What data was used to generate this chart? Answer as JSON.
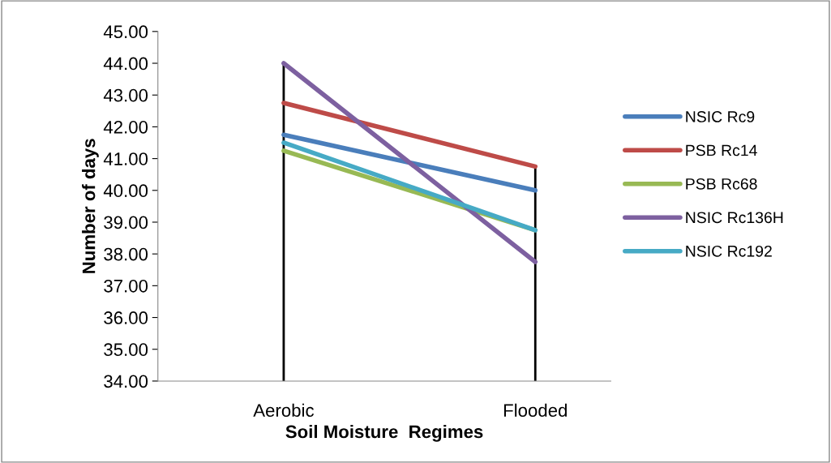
{
  "chart_data": {
    "type": "line",
    "xlabel": "Soil Moisture  Regimes",
    "ylabel": "Number of days",
    "categories": [
      "Aerobic",
      "Flooded"
    ],
    "series": [
      {
        "name": "NSIC Rc9",
        "color": "#4a7ebb",
        "values": [
          41.75,
          40.0
        ]
      },
      {
        "name": "PSB Rc14",
        "color": "#be4b48",
        "values": [
          42.75,
          40.75
        ]
      },
      {
        "name": "PSB Rc68",
        "color": "#98b954",
        "values": [
          41.25,
          38.75
        ]
      },
      {
        "name": "NSIC Rc136H",
        "color": "#7d60a0",
        "values": [
          44.0,
          37.75
        ]
      },
      {
        "name": "NSIC Rc192",
        "color": "#46aac5",
        "values": [
          41.5,
          38.75
        ]
      }
    ],
    "ref_lines": [
      {
        "axis": "x",
        "value": "Aerobic",
        "color": "#000000"
      },
      {
        "axis": "x",
        "value": "Flooded",
        "color": "#000000"
      }
    ],
    "ylim": [
      34,
      45
    ],
    "yticks": [
      {
        "value": 34,
        "label": "34.00"
      },
      {
        "value": 35,
        "label": "35.00"
      },
      {
        "value": 36,
        "label": "36.00"
      },
      {
        "value": 37,
        "label": "37.00"
      },
      {
        "value": 38,
        "label": "38.00"
      },
      {
        "value": 39,
        "label": "39.00"
      },
      {
        "value": 40,
        "label": "40.00"
      },
      {
        "value": 41,
        "label": "41.00"
      },
      {
        "value": 42,
        "label": "42.00"
      },
      {
        "value": 43,
        "label": "43.00"
      },
      {
        "value": 44,
        "label": "44.00"
      },
      {
        "value": 45,
        "label": "45.00"
      }
    ],
    "grid": false,
    "legend": "right",
    "marker": "none",
    "line_style": "solid"
  }
}
